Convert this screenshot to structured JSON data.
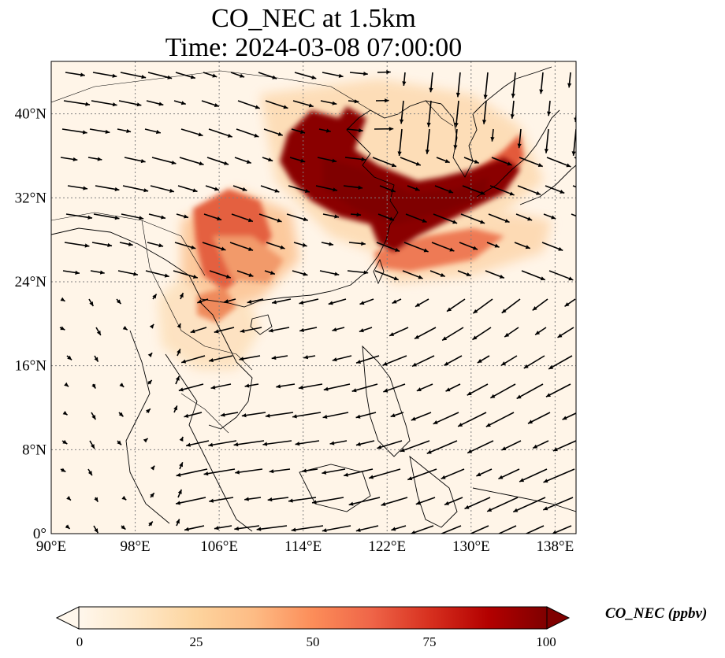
{
  "header": {
    "title_line1": "CO_NEC at 1.5km",
    "title_line2": "Time: 2024-03-08 07:00:00"
  },
  "map": {
    "projection": "PlateCarree",
    "lon_range": [
      90,
      140
    ],
    "lat_range": [
      0,
      45
    ],
    "lon_ticks": [
      90,
      98,
      106,
      114,
      122,
      130,
      138
    ],
    "lat_ticks": [
      0,
      8,
      16,
      24,
      32,
      40
    ],
    "lon_tick_labels": [
      "90°E",
      "98°E",
      "106°E",
      "114°E",
      "122°E",
      "130°E",
      "138°E"
    ],
    "lat_tick_labels": [
      "0°",
      "8°N",
      "16°N",
      "24°N",
      "32°N",
      "40°N"
    ],
    "gridlines": "dotted",
    "coastlines": true,
    "wind_vectors": true,
    "field": "CO_NEC concentration, high over eastern China, Korea and Japan, plume into western Pacific; moderate over southern China and Indochina"
  },
  "colorbar": {
    "label": "CO_NEC (ppbv)",
    "min": 0,
    "max": 100,
    "extend": "both",
    "cmap": "OrRd",
    "tick_values": [
      0,
      25,
      50,
      75,
      100
    ],
    "tick_labels": [
      "0",
      "25",
      "50",
      "75",
      "100"
    ],
    "colors": [
      "#fff7ec",
      "#fee8c8",
      "#fdd49e",
      "#fdbb84",
      "#fc8d59",
      "#ef6548",
      "#d7301f",
      "#b30000",
      "#7f0000"
    ]
  }
}
